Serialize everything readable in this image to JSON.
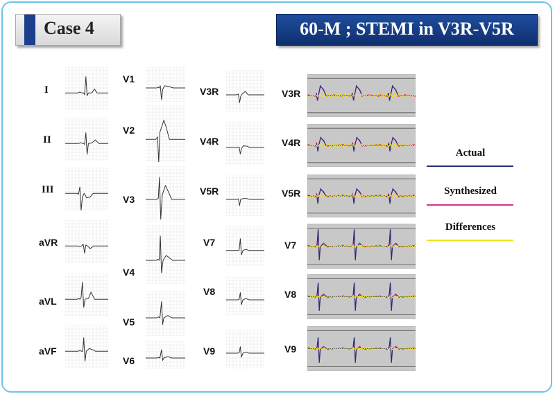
{
  "header": {
    "case_label": "Case 4",
    "title": "60-M ; STEMI in V3R-V5R"
  },
  "col1": [
    {
      "label": "I",
      "kind": "I"
    },
    {
      "label": "II",
      "kind": "II"
    },
    {
      "label": "III",
      "kind": "III"
    },
    {
      "label": "aVR",
      "kind": "aVR"
    },
    {
      "label": "aVL",
      "kind": "aVL"
    },
    {
      "label": "aVF",
      "kind": "aVF"
    }
  ],
  "col2": [
    {
      "label": "V1",
      "kind": "V1"
    },
    {
      "label": "V2",
      "kind": "V2"
    },
    {
      "label": "V3",
      "kind": "V3"
    },
    {
      "label": "V4",
      "kind": "V4"
    },
    {
      "label": "V5",
      "kind": "V5"
    },
    {
      "label": "V6",
      "kind": "V6"
    }
  ],
  "col3": [
    {
      "label": "V3R",
      "kind": "V3R"
    },
    {
      "label": "V4R",
      "kind": "V4R"
    },
    {
      "label": "V5R",
      "kind": "V5R"
    },
    {
      "label": "V7",
      "kind": "V7"
    },
    {
      "label": "V8",
      "kind": "V8"
    },
    {
      "label": "V9",
      "kind": "V9"
    }
  ],
  "col4": [
    {
      "label": "V3R",
      "kind": "V3R"
    },
    {
      "label": "V4R",
      "kind": "V4R"
    },
    {
      "label": "V5R",
      "kind": "V5R"
    },
    {
      "label": "V7",
      "kind": "V7"
    },
    {
      "label": "V8",
      "kind": "V8"
    },
    {
      "label": "V9",
      "kind": "V9"
    }
  ],
  "legend": [
    {
      "label": "Actual",
      "color": "#1f2f7a"
    },
    {
      "label": "Synthesized",
      "color": "#d6318f"
    },
    {
      "label": "Differences",
      "color": "#f2e31a"
    }
  ],
  "colors": {
    "trace": "#333333",
    "grid": "#e3e3e3",
    "compare_bg": "#c8c8c8",
    "frame": "#6cc4ea"
  }
}
